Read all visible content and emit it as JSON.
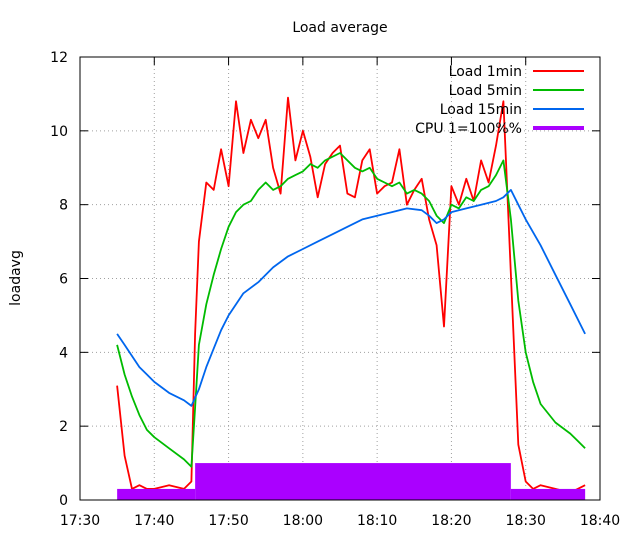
{
  "chart_data": {
    "type": "line",
    "title": "Load average",
    "ylabel": "loadavg",
    "xlabel": "",
    "x_unit": "time (HH:MM)",
    "xlim": [
      "17:30",
      "18:40"
    ],
    "ylim": [
      0,
      12
    ],
    "x_ticks": [
      "17:30",
      "17:40",
      "17:50",
      "18:00",
      "18:10",
      "18:20",
      "18:30",
      "18:40"
    ],
    "y_ticks": [
      0,
      2,
      4,
      6,
      8,
      10,
      12
    ],
    "grid": true,
    "legend_position": "top-right",
    "series": [
      {
        "name": "Load 1min",
        "color": "#ff0000",
        "x": [
          "17:35",
          "17:36",
          "17:37",
          "17:38",
          "17:39",
          "17:40",
          "17:42",
          "17:44",
          "17:45",
          "17:45:30",
          "17:46",
          "17:47",
          "17:48",
          "17:49",
          "17:50",
          "17:51",
          "17:52",
          "17:53",
          "17:54",
          "17:55",
          "17:56",
          "17:57",
          "17:58",
          "17:59",
          "18:00",
          "18:01",
          "18:02",
          "18:03",
          "18:04",
          "18:05",
          "18:06",
          "18:07",
          "18:08",
          "18:09",
          "18:10",
          "18:11",
          "18:12",
          "18:13",
          "18:14",
          "18:15",
          "18:16",
          "18:17",
          "18:18",
          "18:19",
          "18:20",
          "18:21",
          "18:22",
          "18:23",
          "18:24",
          "18:25",
          "18:26",
          "18:27",
          "18:28",
          "18:29",
          "18:30",
          "18:31",
          "18:32",
          "18:34",
          "18:36",
          "18:37",
          "18:38"
        ],
        "y": [
          3.1,
          1.2,
          0.3,
          0.4,
          0.3,
          0.3,
          0.4,
          0.3,
          0.5,
          4.5,
          7.0,
          8.6,
          8.4,
          9.5,
          8.5,
          10.8,
          9.4,
          10.3,
          9.8,
          10.3,
          9.0,
          8.3,
          10.9,
          9.2,
          10.0,
          9.3,
          8.2,
          9.1,
          9.4,
          9.6,
          8.3,
          8.2,
          9.2,
          9.5,
          8.3,
          8.5,
          8.6,
          9.5,
          8.0,
          8.4,
          8.7,
          7.6,
          6.9,
          4.7,
          8.5,
          8.0,
          8.7,
          8.1,
          9.2,
          8.6,
          9.6,
          10.8,
          6.1,
          1.5,
          0.5,
          0.3,
          0.4,
          0.3,
          0.2,
          0.3,
          0.4
        ]
      },
      {
        "name": "Load 5min",
        "color": "#00bb00",
        "x": [
          "17:35",
          "17:36",
          "17:37",
          "17:38",
          "17:39",
          "17:40",
          "17:42",
          "17:44",
          "17:45",
          "17:45:30",
          "17:46",
          "17:47",
          "17:48",
          "17:49",
          "17:50",
          "17:51",
          "17:52",
          "17:53",
          "17:54",
          "17:55",
          "17:56",
          "17:57",
          "17:58",
          "17:59",
          "18:00",
          "18:01",
          "18:02",
          "18:03",
          "18:04",
          "18:05",
          "18:06",
          "18:07",
          "18:08",
          "18:09",
          "18:10",
          "18:11",
          "18:12",
          "18:13",
          "18:14",
          "18:15",
          "18:16",
          "18:17",
          "18:18",
          "18:19",
          "18:20",
          "18:21",
          "18:22",
          "18:23",
          "18:24",
          "18:25",
          "18:26",
          "18:27",
          "18:28",
          "18:29",
          "18:30",
          "18:31",
          "18:32",
          "18:34",
          "18:36",
          "18:37",
          "18:38"
        ],
        "y": [
          4.2,
          3.4,
          2.8,
          2.3,
          1.9,
          1.7,
          1.4,
          1.1,
          0.9,
          2.5,
          4.2,
          5.3,
          6.1,
          6.8,
          7.4,
          7.8,
          8.0,
          8.1,
          8.4,
          8.6,
          8.4,
          8.5,
          8.7,
          8.8,
          8.9,
          9.1,
          9.0,
          9.2,
          9.3,
          9.4,
          9.2,
          9.0,
          8.9,
          9.0,
          8.7,
          8.6,
          8.5,
          8.6,
          8.3,
          8.4,
          8.3,
          8.1,
          7.7,
          7.5,
          8.0,
          7.9,
          8.2,
          8.1,
          8.4,
          8.5,
          8.8,
          9.2,
          7.6,
          5.4,
          4.0,
          3.2,
          2.6,
          2.1,
          1.8,
          1.6,
          1.4
        ]
      },
      {
        "name": "Load 15min",
        "color": "#0066ee",
        "x": [
          "17:35",
          "17:36",
          "17:37",
          "17:38",
          "17:39",
          "17:40",
          "17:42",
          "17:44",
          "17:45",
          "17:46",
          "17:47",
          "17:48",
          "17:49",
          "17:50",
          "17:52",
          "17:54",
          "17:56",
          "17:58",
          "18:00",
          "18:02",
          "18:04",
          "18:06",
          "18:08",
          "18:10",
          "18:12",
          "18:14",
          "18:16",
          "18:17",
          "18:18",
          "18:19",
          "18:20",
          "18:22",
          "18:24",
          "18:26",
          "18:27",
          "18:28",
          "18:29",
          "18:30",
          "18:32",
          "18:34",
          "18:36",
          "18:38"
        ],
        "y": [
          4.5,
          4.2,
          3.9,
          3.6,
          3.4,
          3.2,
          2.9,
          2.7,
          2.55,
          3.0,
          3.6,
          4.1,
          4.6,
          5.0,
          5.6,
          5.9,
          6.3,
          6.6,
          6.8,
          7.0,
          7.2,
          7.4,
          7.6,
          7.7,
          7.8,
          7.9,
          7.85,
          7.7,
          7.5,
          7.6,
          7.8,
          7.9,
          8.0,
          8.1,
          8.2,
          8.4,
          8.0,
          7.6,
          6.9,
          6.1,
          5.3,
          4.5
        ]
      },
      {
        "name": "CPU 1=100%%",
        "color": "#aa00ff",
        "style": "impulses",
        "segments": [
          {
            "from": "17:35",
            "to": "17:45:30",
            "level": 0.3
          },
          {
            "from": "17:45:30",
            "to": "18:28",
            "level": 1.0
          },
          {
            "from": "18:28",
            "to": "18:38",
            "level": 0.3
          }
        ]
      }
    ]
  }
}
